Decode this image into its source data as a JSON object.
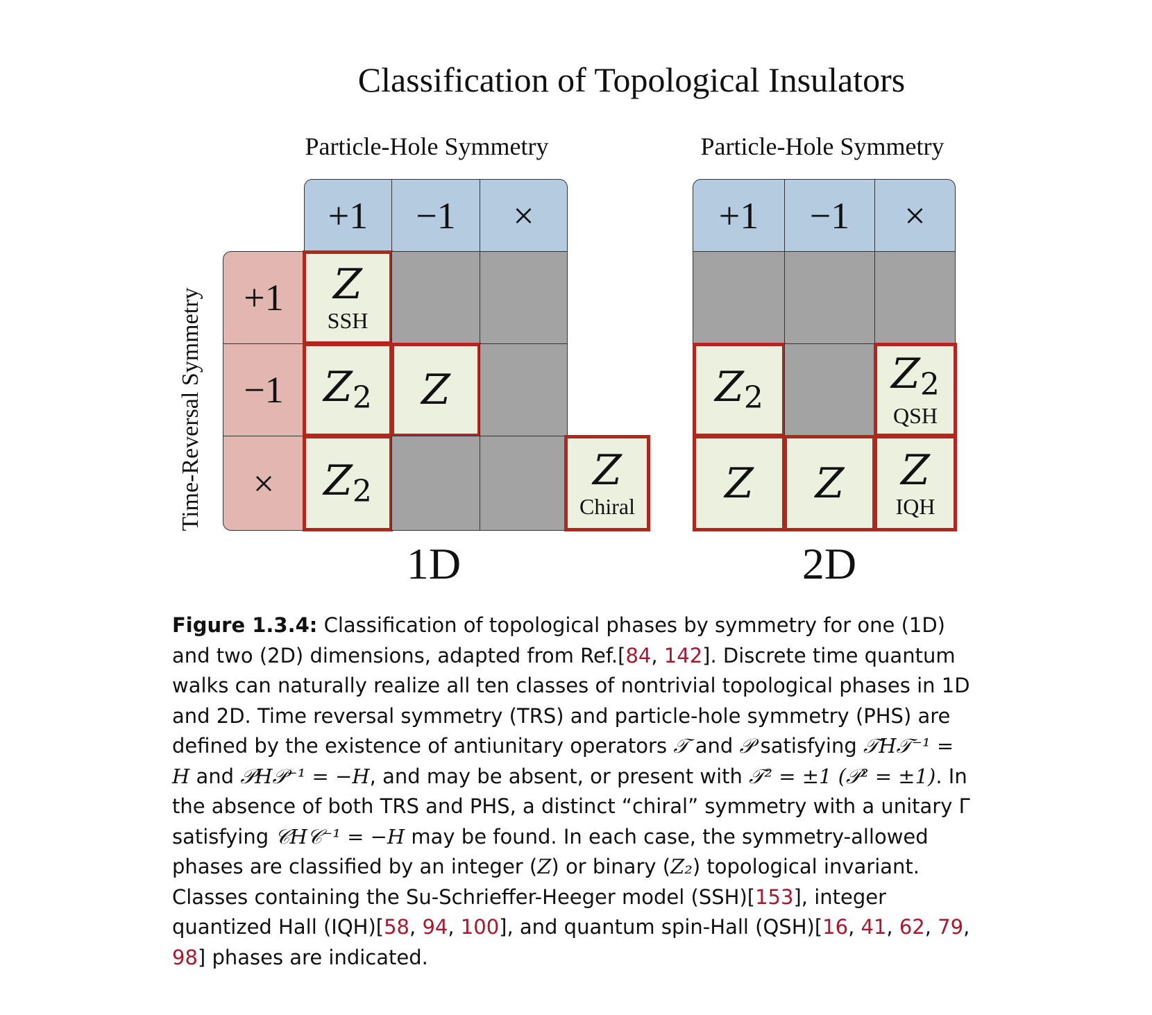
{
  "title": "Classification of Topological Insulators",
  "phs_label": "Particle-Hole Symmetry",
  "trs_label": "Time-Reversal Symmetry",
  "column_headers": [
    "+1",
    "−1",
    "×"
  ],
  "row_headers": [
    "+1",
    "−1",
    "×"
  ],
  "invariants": {
    "z": "Z",
    "z2_base": "Z",
    "z2_sub": "2"
  },
  "panel_1d": {
    "label": "1D",
    "ssh": "SSH",
    "chiral": "Chiral"
  },
  "panel_2d": {
    "label": "2D",
    "qsh": "QSH",
    "iqh": "IQH"
  },
  "caption": {
    "label": "Figure 1.3.4:",
    "s1": " Classification of topological phases by symmetry for one (1D) and two (2D) dimensions, adapted from Ref.[",
    "ref_84": "84",
    "ref_142": "142",
    "s2": "]. Discrete time quantum walks can naturally realize all ten classes of nontrivial topological phases in 1D and 2D. Time reversal symmetry (TRS) and particle-hole symmetry (PHS) are defined by the existence of antiunitary operators ",
    "t_op": "𝒯",
    "and": " and ",
    "p_op": "𝒫",
    "satisfying": " satisfying ",
    "eq1": "𝒯H𝒯⁻¹ = H",
    "eq2": "𝒫H𝒫⁻¹ = −H",
    "s3": ", and may be absent, or present with ",
    "eq3": "𝒯² = ±1 (𝒫² = ±1)",
    "s4": ". In the absence of both TRS and PHS, a distinct “chiral” symmetry with a unitary Γ satisfying ",
    "eq4": "𝒞H𝒞⁻¹ = −H",
    "s5": " may be found. In each case, the symmetry-allowed phases are classified by an integer (",
    "zi": "Z",
    "s6": ") or binary (",
    "z2i": "Z₂",
    "s7": ") topological invariant. Classes containing the Su-Schrieffer-Heeger model (SSH)[",
    "ref_153": "153",
    "s8": "], integer quantized Hall (IQH)[",
    "ref_58": "58",
    "ref_94": "94",
    "ref_100": "100",
    "s9": "], and quantum spin-Hall (QSH)[",
    "ref_16": "16",
    "ref_41": "41",
    "ref_62": "62",
    "ref_79": "79",
    "ref_98": "98",
    "s10": "] phases are indicated.",
    "comma": ", "
  }
}
